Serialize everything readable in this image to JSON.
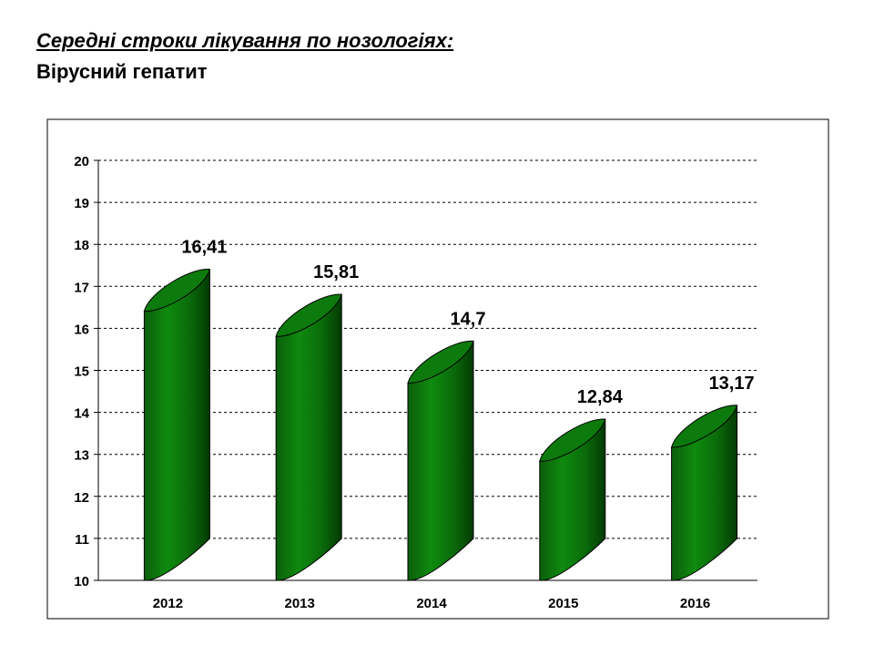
{
  "header": {
    "title": "Середні строки лікування по нозологіях:",
    "subtitle": "Вірусний гепатит"
  },
  "chart_data": {
    "type": "bar",
    "bar_shape": "cylinder",
    "categories": [
      "2012",
      "2013",
      "2014",
      "2015",
      "2016"
    ],
    "values": [
      16.41,
      15.81,
      14.7,
      12.84,
      13.17
    ],
    "data_labels": [
      "16,41",
      "15,81",
      "14,7",
      "12,84",
      "13,17"
    ],
    "ylim": [
      10,
      20
    ],
    "yticks": [
      10,
      11,
      12,
      13,
      14,
      15,
      16,
      17,
      18,
      19,
      20
    ],
    "grid": "dashed-horizontal",
    "legend": "none",
    "colors": {
      "bar_dark": "#004d00",
      "bar_mid": "#008000",
      "bar_light": "#1a9a1a",
      "bar_top": "#0a6a0a",
      "grid": "#000000",
      "frame": "#000000"
    }
  }
}
